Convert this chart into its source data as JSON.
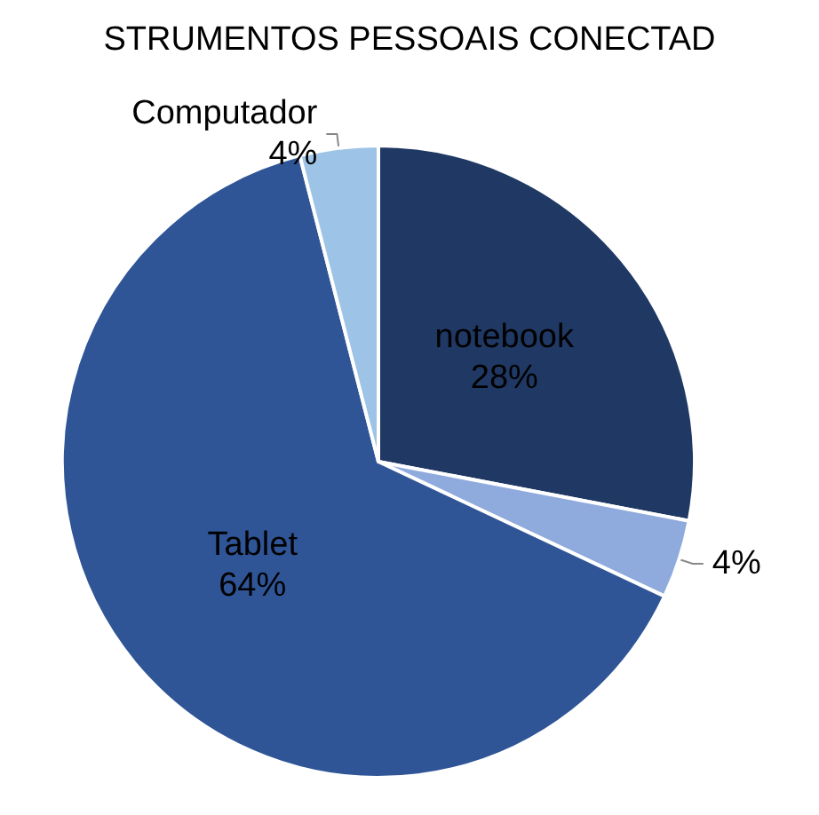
{
  "chart_data": {
    "type": "pie",
    "title": "STRUMENTOS PESSOAIS CONECTAD",
    "categories": [
      "notebook",
      null,
      "Tablet",
      "Computador"
    ],
    "values": [
      28,
      4,
      64,
      4
    ],
    "value_labels": [
      "28%",
      "4%",
      "64%",
      "4%"
    ],
    "colors": [
      "#203864",
      "#8faadc",
      "#2f5597",
      "#9dc3e6"
    ],
    "legend": false
  }
}
